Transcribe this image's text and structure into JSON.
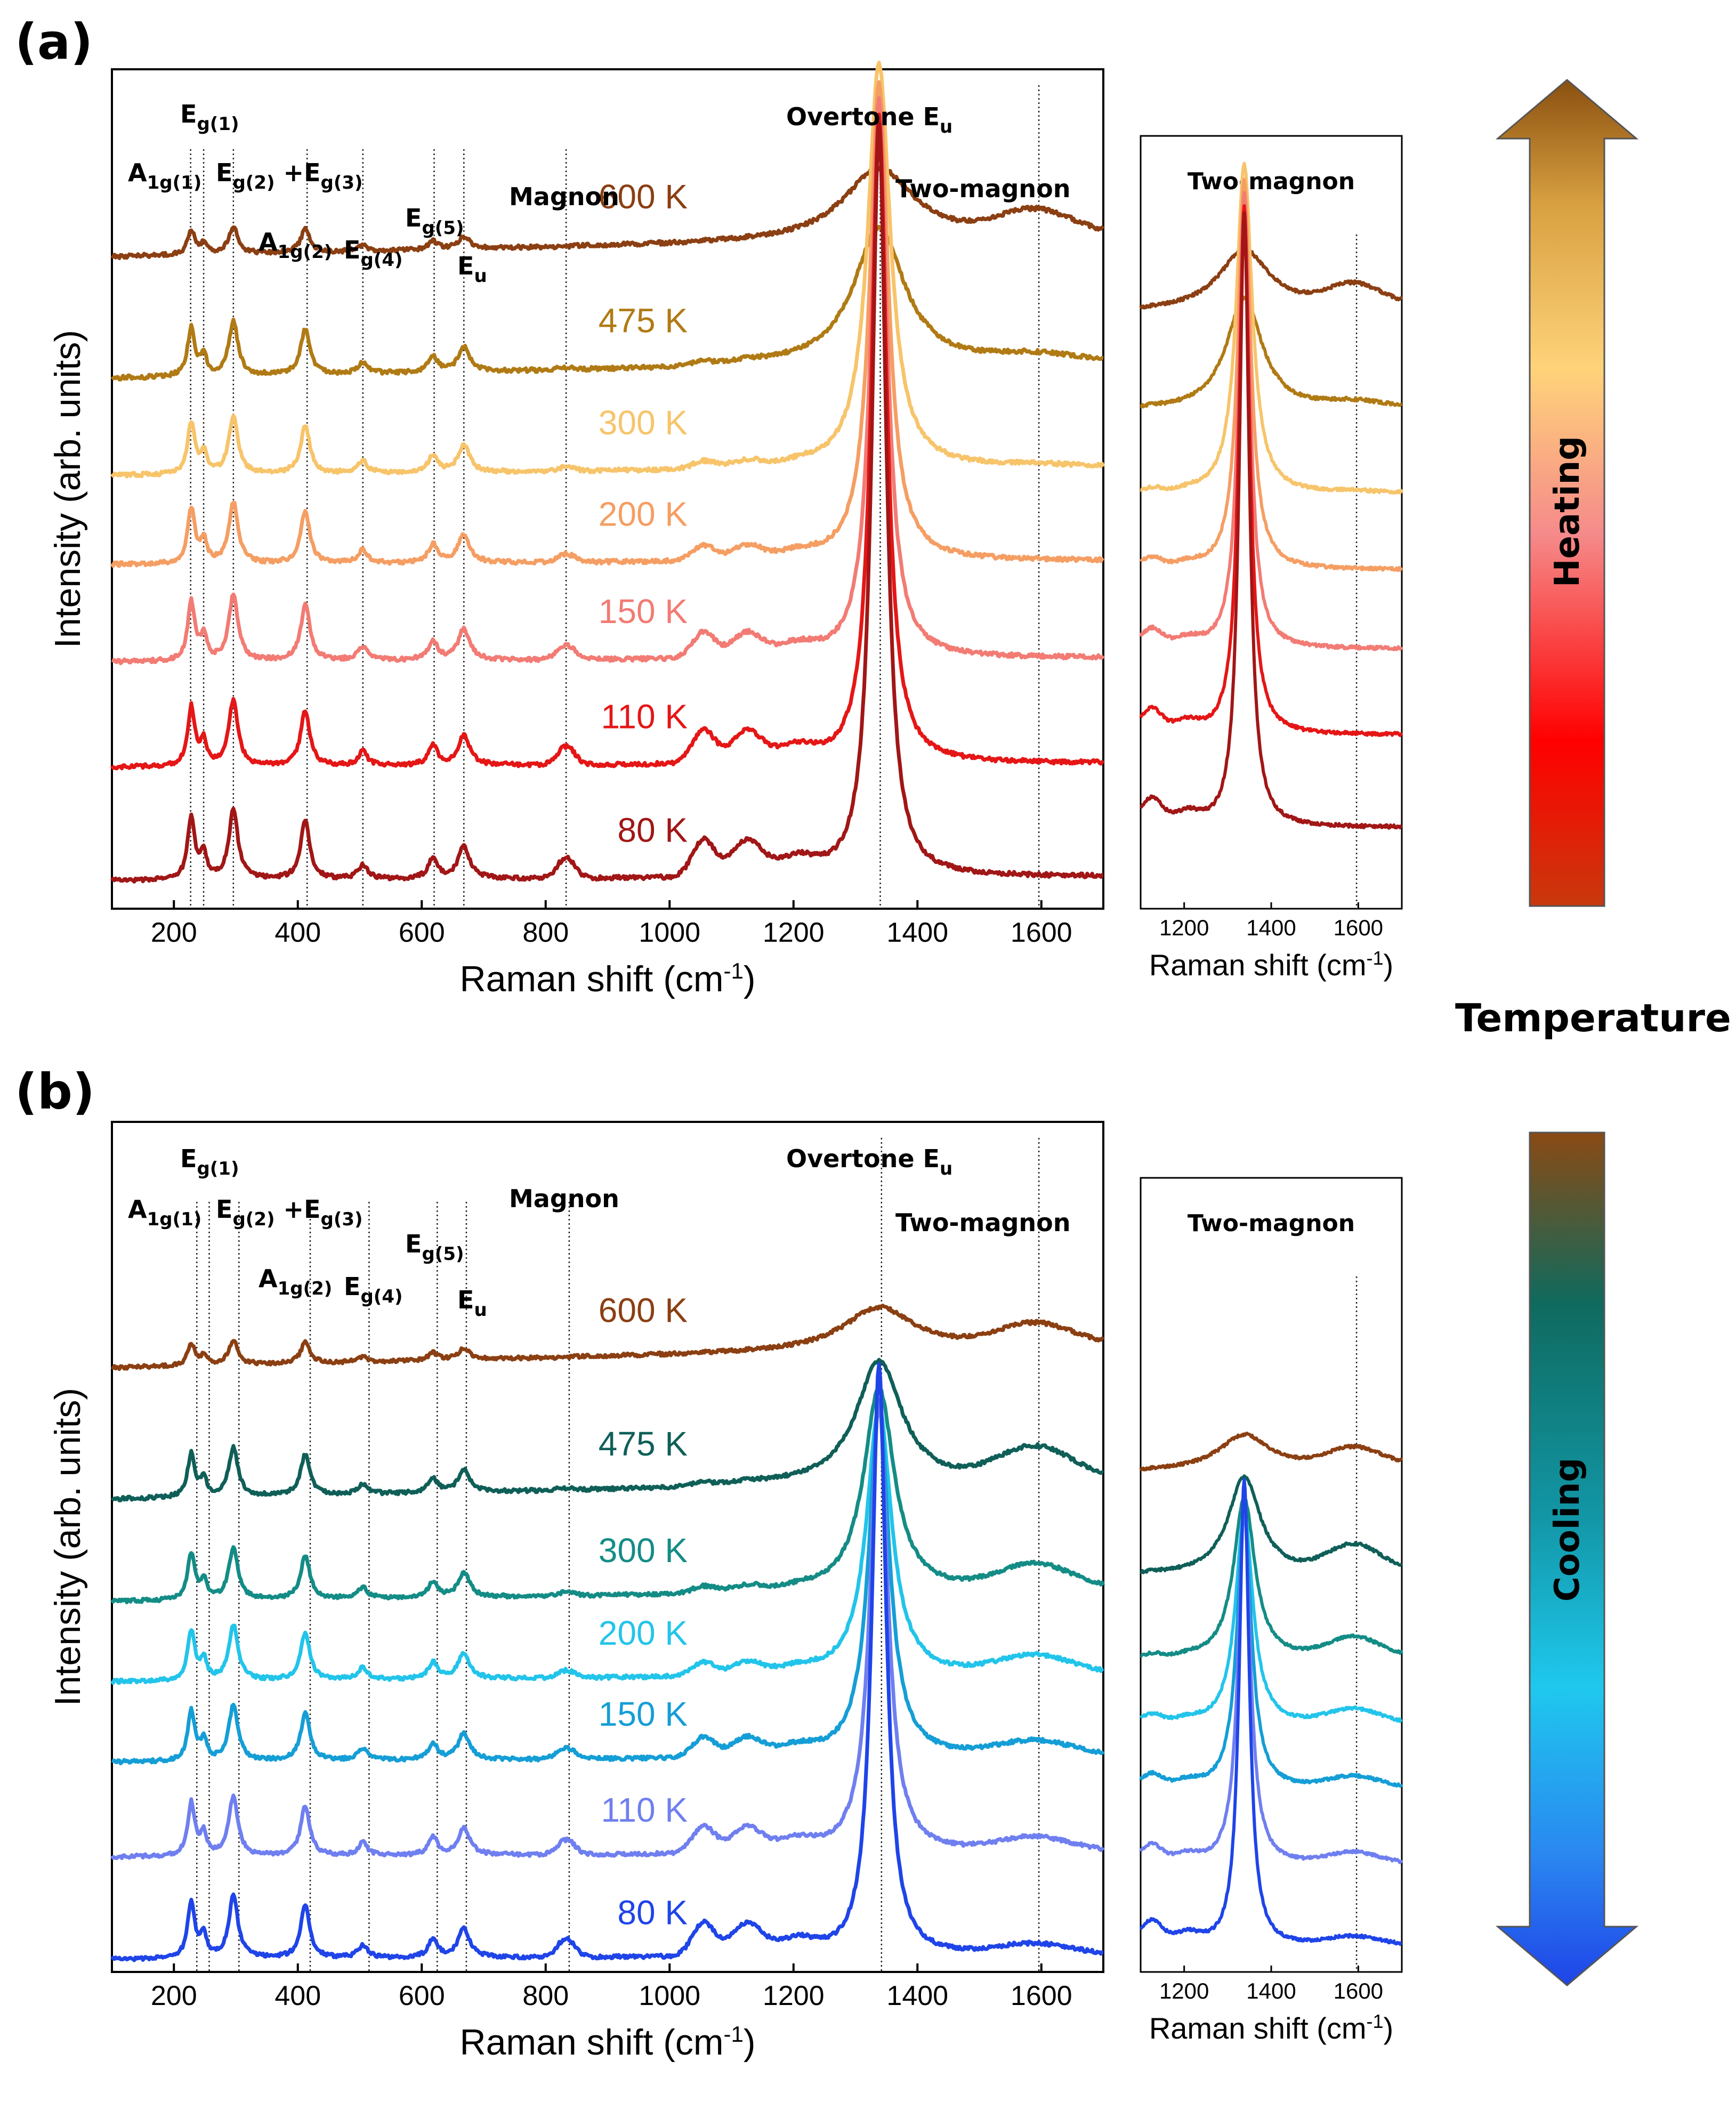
{
  "chart_data": [
    {
      "type": "line",
      "panel": "(a)",
      "xlabel": "Raman shift (cm-1)",
      "ylabel": "Intensity (arb. units)",
      "xlim": [
        100,
        1700
      ],
      "xticks": [
        200,
        400,
        600,
        800,
        1000,
        1200,
        1400,
        1600
      ],
      "xtick_labels": [
        "200",
        "400",
        "600",
        "800",
        "1000",
        "1200",
        "1400",
        "1600"
      ],
      "reference_lines_cm1": [
        227,
        248,
        296,
        415,
        505,
        620,
        668,
        833,
        1340,
        1596
      ],
      "annotations": [
        {
          "base": "A",
          "sub": "1g(1)",
          "tail": ""
        },
        {
          "base": "E",
          "sub": "g(1)",
          "tail": ""
        },
        {
          "base": "E",
          "sub": "g(2)",
          "tail": " +E",
          "sub2": "g(3)"
        },
        {
          "base": "A",
          "sub": "1g(2)",
          "tail": ""
        },
        {
          "base": "E",
          "sub": "g(4)",
          "tail": ""
        },
        {
          "base": "E",
          "sub": "g(5)",
          "tail": ""
        },
        {
          "base": "E",
          "sub": "u",
          "tail": ""
        },
        {
          "base": "Magnon",
          "sub": "",
          "tail": ""
        },
        {
          "base": "Overtone E",
          "sub": "u",
          "tail": ""
        },
        {
          "base": "Two-magnon",
          "sub": "",
          "tail": ""
        }
      ],
      "series": [
        {
          "name": "600 K",
          "color": "#8b3f12",
          "offset": 9.0,
          "peak": 0.9,
          "phonon": 0.35,
          "magnon": 0.0,
          "twomag": 0.3,
          "slope": 0.25,
          "broad": 70
        },
        {
          "name": "475 K",
          "color": "#b07a14",
          "offset": 7.5,
          "peak": 1.7,
          "phonon": 0.7,
          "magnon": 0.05,
          "twomag": 0.08,
          "slope": 0.2,
          "broad": 50
        },
        {
          "name": "300 K",
          "color": "#f7c46a",
          "offset": 6.3,
          "peak": 5.0,
          "phonon": 0.75,
          "magnon": 0.1,
          "twomag": 0.03,
          "slope": 0.1,
          "broad": 22
        },
        {
          "name": "200 K",
          "color": "#f59e63",
          "offset": 5.2,
          "peak": 5.9,
          "phonon": 0.8,
          "magnon": 0.2,
          "twomag": 0.0,
          "slope": 0.05,
          "broad": 18
        },
        {
          "name": "150 K",
          "color": "#f27b74",
          "offset": 4.0,
          "peak": 6.9,
          "phonon": 0.85,
          "magnon": 0.35,
          "twomag": 0.0,
          "slope": 0.05,
          "broad": 16
        },
        {
          "name": "110 K",
          "color": "#e51616",
          "offset": 2.7,
          "peak": 8.0,
          "phonon": 0.85,
          "magnon": 0.45,
          "twomag": 0.0,
          "slope": 0.05,
          "broad": 15
        },
        {
          "name": "80 K",
          "color": "#a11616",
          "offset": 1.3,
          "peak": 9.3,
          "phonon": 0.9,
          "magnon": 0.5,
          "twomag": 0.0,
          "slope": 0.05,
          "broad": 14
        }
      ],
      "inset": {
        "title": "Two-magnon",
        "xlabel": "Raman shift (cm-1)",
        "xlim": [
          1100,
          1700
        ],
        "xticks": [
          1200,
          1400,
          1600
        ],
        "xtick_labels": [
          "1200",
          "1400",
          "1600"
        ],
        "reference_line_cm1": 1596
      },
      "gradient_arrow": {
        "label": "Heating",
        "direction": "up",
        "colors": [
          "#c8390d",
          "#ff0000",
          "#f58a8a",
          "#ffd37a",
          "#d8a040",
          "#8a5010"
        ]
      }
    },
    {
      "type": "line",
      "panel": "(b)",
      "xlabel": "Raman shift (cm-1)",
      "ylabel": "Intensity (arb. units)",
      "xlim": [
        100,
        1700
      ],
      "xticks": [
        200,
        400,
        600,
        800,
        1000,
        1200,
        1400,
        1600
      ],
      "xtick_labels": [
        "200",
        "400",
        "600",
        "800",
        "1000",
        "1200",
        "1400",
        "1600"
      ],
      "reference_lines_cm1": [
        237,
        257,
        305,
        420,
        515,
        625,
        672,
        838,
        1342,
        1596
      ],
      "annotations": [
        {
          "base": "A",
          "sub": "1g(1)",
          "tail": ""
        },
        {
          "base": "E",
          "sub": "g(1)",
          "tail": ""
        },
        {
          "base": "E",
          "sub": "g(2)",
          "tail": " +E",
          "sub2": "g(3)"
        },
        {
          "base": "A",
          "sub": "1g(2)",
          "tail": ""
        },
        {
          "base": "E",
          "sub": "g(4)",
          "tail": ""
        },
        {
          "base": "E",
          "sub": "g(5)",
          "tail": ""
        },
        {
          "base": "E",
          "sub": "u",
          "tail": ""
        },
        {
          "base": "Magnon",
          "sub": "",
          "tail": ""
        },
        {
          "base": "Overtone E",
          "sub": "u",
          "tail": ""
        },
        {
          "base": "Two-magnon",
          "sub": "",
          "tail": ""
        }
      ],
      "series": [
        {
          "name": "600 K",
          "color": "#8b3f12",
          "offset": 9.2,
          "peak": 0.6,
          "phonon": 0.35,
          "magnon": 0.0,
          "twomag": 0.3,
          "slope": 0.3,
          "broad": 70
        },
        {
          "name": "475 K",
          "color": "#0f5f58",
          "offset": 7.4,
          "peak": 1.7,
          "phonon": 0.7,
          "magnon": 0.05,
          "twomag": 0.45,
          "slope": 0.25,
          "broad": 45
        },
        {
          "name": "300 K",
          "color": "#148c86",
          "offset": 6.0,
          "peak": 2.8,
          "phonon": 0.75,
          "magnon": 0.1,
          "twomag": 0.35,
          "slope": 0.15,
          "broad": 30
        },
        {
          "name": "200 K",
          "color": "#22c4ea",
          "offset": 4.9,
          "peak": 3.7,
          "phonon": 0.8,
          "magnon": 0.2,
          "twomag": 0.25,
          "slope": 0.1,
          "broad": 24
        },
        {
          "name": "150 K",
          "color": "#159ed6",
          "offset": 3.8,
          "peak": 4.8,
          "phonon": 0.8,
          "magnon": 0.3,
          "twomag": 0.2,
          "slope": 0.08,
          "broad": 20
        },
        {
          "name": "110 K",
          "color": "#6f7ff0",
          "offset": 2.5,
          "peak": 6.2,
          "phonon": 0.85,
          "magnon": 0.4,
          "twomag": 0.2,
          "slope": 0.06,
          "broad": 17
        },
        {
          "name": "80 K",
          "color": "#1f44e8",
          "offset": 1.1,
          "peak": 8.1,
          "phonon": 0.9,
          "magnon": 0.5,
          "twomag": 0.15,
          "slope": 0.05,
          "broad": 14
        }
      ],
      "inset": {
        "title": "Two-magnon",
        "xlabel": "Raman shift (cm-1)",
        "xlim": [
          1100,
          1700
        ],
        "xticks": [
          1200,
          1400,
          1600
        ],
        "xtick_labels": [
          "1200",
          "1400",
          "1600"
        ],
        "reference_line_cm1": 1596
      },
      "gradient_arrow": {
        "label": "Cooling",
        "direction": "down",
        "colors": [
          "#8a4a14",
          "#0f6a5e",
          "#1296a6",
          "#1fc8ee",
          "#2a86f0",
          "#1f44e8"
        ]
      }
    }
  ],
  "figure": {
    "panel_a_letter": "(a)",
    "panel_b_letter": "(b)",
    "side_title": "Temperature"
  }
}
